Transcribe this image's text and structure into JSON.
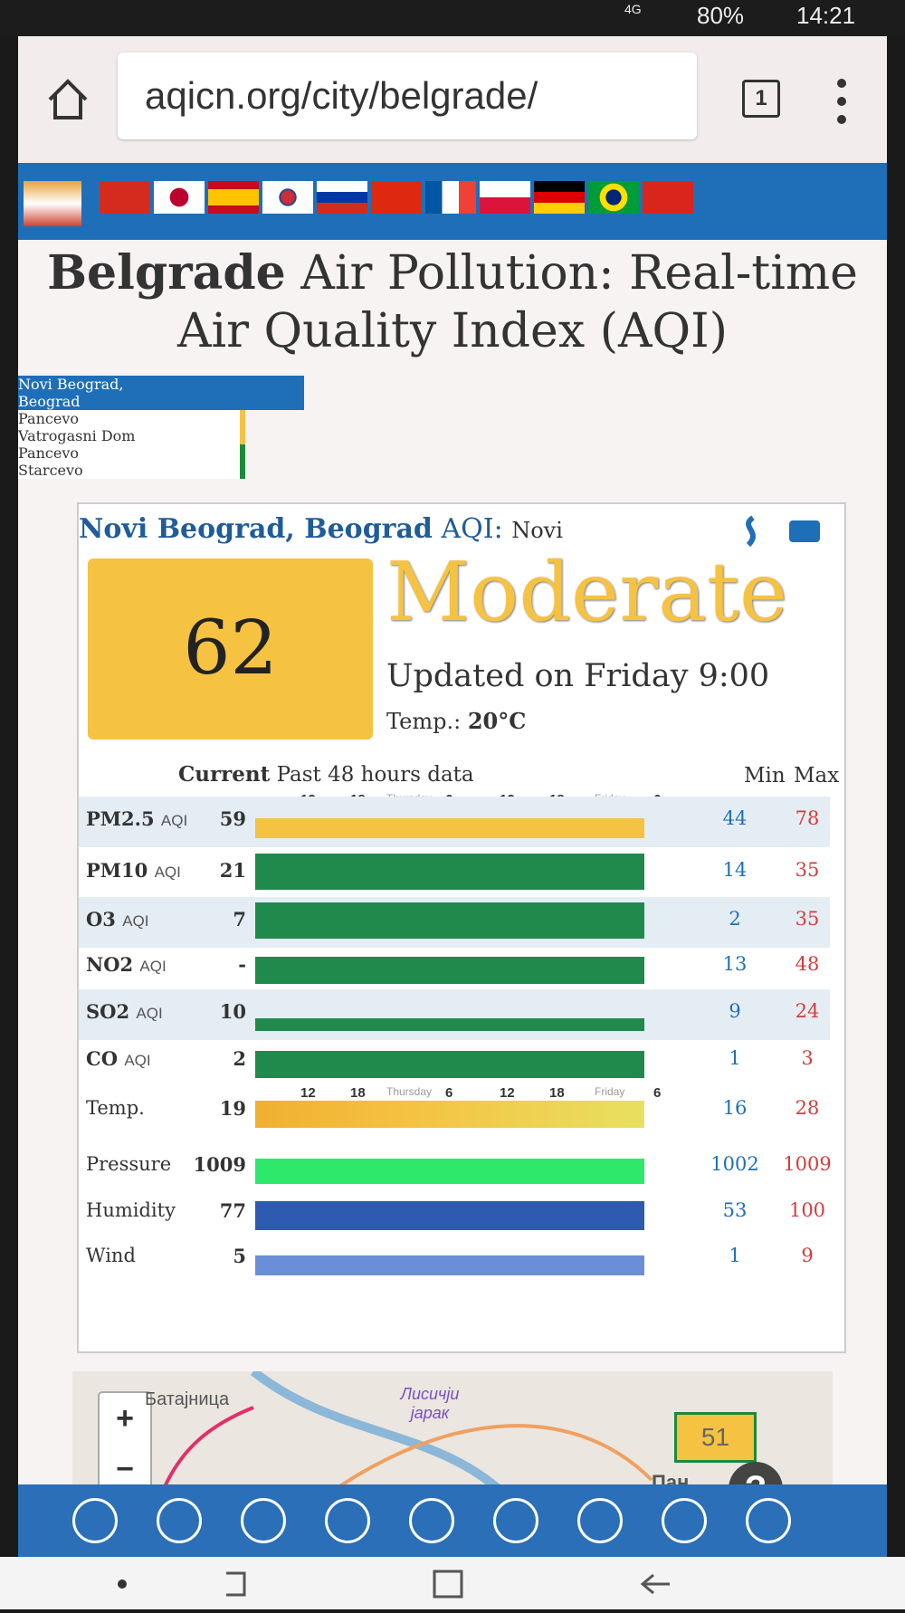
{
  "status_bar": {
    "network": "4G",
    "battery": "80%",
    "time": "14:21"
  },
  "browser": {
    "url": "aqicn.org/city/belgrade/",
    "tabs": "1"
  },
  "title": {
    "city": "Belgrade",
    "rest": "Air Pollution: Real-time Air Quality Index (AQI)"
  },
  "stations": [
    {
      "line1": "Novi Beograd,",
      "line2": "Beograd"
    },
    {
      "line1": "Pancevo",
      "line2": "Vatrogasni Dom"
    },
    {
      "line1": "Pancevo",
      "line2": "Starcevo"
    }
  ],
  "card": {
    "station": "Novi Beograd, Beograd",
    "aqi_label": "AQI:",
    "station_short": "Novi",
    "aqi": "62",
    "level": "Moderate",
    "updated": "Updated on Friday 9:00",
    "temp_label": "Temp.:",
    "temp": "20°C",
    "header": {
      "current": "Current",
      "history": "Past 48 hours data",
      "min": "Min",
      "max": "Max"
    },
    "time_labels": [
      "12",
      "18",
      "Thursday",
      "6",
      "12",
      "18",
      "Friday",
      "6"
    ],
    "rows": [
      {
        "name": "PM2.5",
        "unit": "AQI",
        "current": "59",
        "min": "44",
        "max": "78"
      },
      {
        "name": "PM10",
        "unit": "AQI",
        "current": "21",
        "min": "14",
        "max": "35"
      },
      {
        "name": "O3",
        "unit": "AQI",
        "current": "7",
        "min": "2",
        "max": "35"
      },
      {
        "name": "NO2",
        "unit": "AQI",
        "current": "-",
        "min": "13",
        "max": "48"
      },
      {
        "name": "SO2",
        "unit": "AQI",
        "current": "10",
        "min": "9",
        "max": "24"
      },
      {
        "name": "CO",
        "unit": "AQI",
        "current": "2",
        "min": "1",
        "max": "3"
      },
      {
        "name": "Temp.",
        "current": "19",
        "min": "16",
        "max": "28"
      },
      {
        "name": "Pressure",
        "current": "1009",
        "min": "1002",
        "max": "1009"
      },
      {
        "name": "Humidity",
        "current": "77",
        "min": "53",
        "max": "100"
      },
      {
        "name": "Wind",
        "current": "5",
        "min": "1",
        "max": "9"
      }
    ]
  },
  "map": {
    "zoom_in": "+",
    "zoom_out": "−",
    "place1": "Батајница",
    "place2": "Лисичји јарак",
    "marker": "51",
    "place3": "Пан",
    "help": "?"
  }
}
